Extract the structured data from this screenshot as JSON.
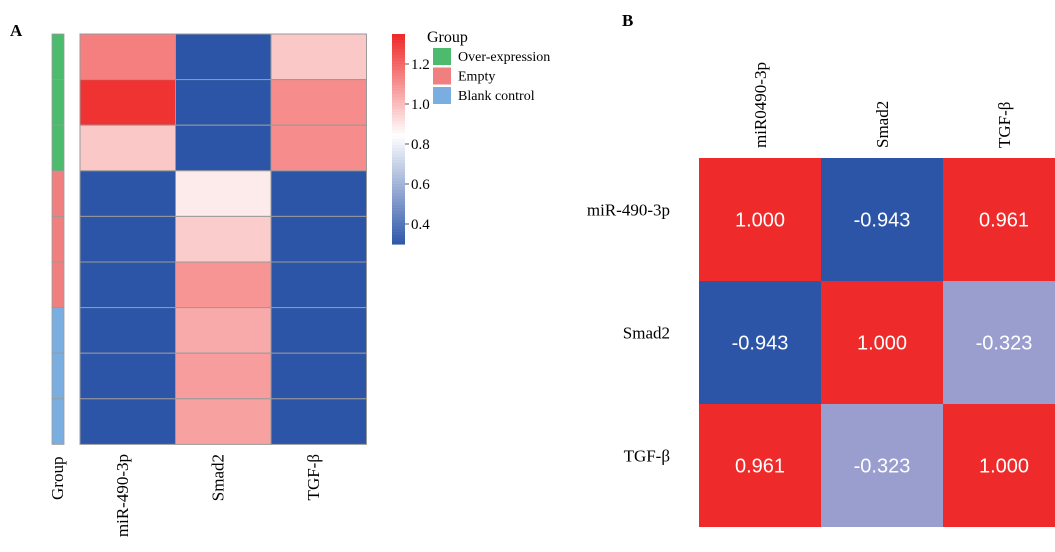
{
  "panel_a": {
    "letter": "A",
    "group_axis_label": "Group",
    "legend": {
      "title": "Group",
      "items": [
        {
          "label": "Over-expression",
          "color": "#4dbb6d"
        },
        {
          "label": "Empty",
          "color": "#f08080"
        },
        {
          "label": "Blank control",
          "color": "#7aaee0"
        }
      ]
    }
  },
  "panel_b": {
    "letter": "B",
    "col_labels": [
      "miR0490-3p",
      "Smad2",
      "TGF-β"
    ],
    "row_labels": [
      "miR-490-3p",
      "Smad2",
      "TGF-β"
    ]
  },
  "colors": {
    "high": "#ee2a2a",
    "mid": "#ffffff",
    "low": "#2c55a8",
    "corr_positive": "#ee2a2a",
    "corr_negative": "#2c55a8",
    "corr_weak": "#9a9ece"
  },
  "chart_data": [
    {
      "type": "heatmap",
      "panel": "A",
      "columns": [
        "miR-490-3p",
        "Smad2",
        "TGF-β"
      ],
      "row_groups": [
        "Over-expression",
        "Over-expression",
        "Over-expression",
        "Empty",
        "Empty",
        "Empty",
        "Blank control",
        "Blank control",
        "Blank control"
      ],
      "values": [
        [
          1.15,
          0.3,
          0.98
        ],
        [
          1.33,
          0.3,
          1.12
        ],
        [
          0.98,
          0.3,
          1.12
        ],
        [
          0.3,
          0.9,
          0.3
        ],
        [
          0.3,
          0.97,
          0.3
        ],
        [
          0.3,
          1.1,
          0.3
        ],
        [
          0.3,
          1.05,
          0.3
        ],
        [
          0.3,
          1.08,
          0.3
        ],
        [
          0.3,
          1.07,
          0.3
        ]
      ],
      "colorbar": {
        "range": [
          0.3,
          1.35
        ],
        "ticks": [
          "1.2",
          "1.0",
          "0.8",
          "0.6",
          "0.4"
        ],
        "tick_values": [
          1.2,
          1.0,
          0.8,
          0.6,
          0.4
        ]
      }
    },
    {
      "type": "heatmap",
      "panel": "B",
      "rows": [
        "miR-490-3p",
        "Smad2",
        "TGF-β"
      ],
      "columns": [
        "miR0490-3p",
        "Smad2",
        "TGF-β"
      ],
      "values": [
        [
          1.0,
          -0.943,
          0.961
        ],
        [
          -0.943,
          1.0,
          -0.323
        ],
        [
          0.961,
          -0.323,
          1.0
        ]
      ],
      "value_labels": [
        [
          "1.000",
          "-0.943",
          "0.961"
        ],
        [
          "-0.943",
          "1.000",
          "-0.323"
        ],
        [
          "0.961",
          "-0.323",
          "1.000"
        ]
      ]
    }
  ]
}
